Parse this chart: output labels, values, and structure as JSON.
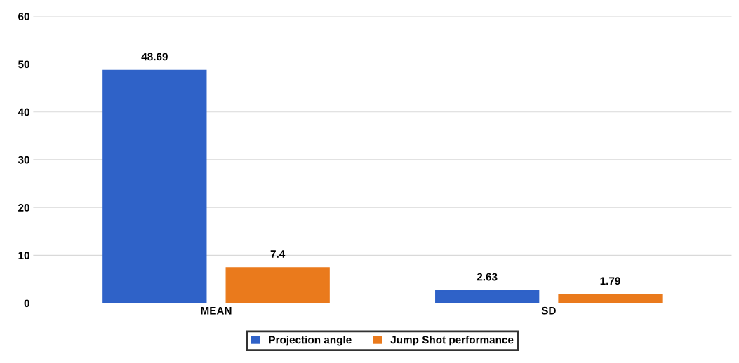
{
  "chart_data": {
    "type": "bar",
    "categories": [
      "MEAN",
      "SD"
    ],
    "series": [
      {
        "name": "Projection angle",
        "color": "#2f62c8",
        "values": [
          48.69,
          2.63
        ]
      },
      {
        "name": "Jump Shot performance",
        "color": "#ea7a1c",
        "values": [
          7.4,
          1.79
        ]
      }
    ],
    "ylim": [
      0,
      60
    ],
    "yticks": [
      0,
      10,
      20,
      30,
      40,
      50,
      60
    ],
    "grid": "y",
    "legend": "bottom",
    "data_labels": true
  }
}
